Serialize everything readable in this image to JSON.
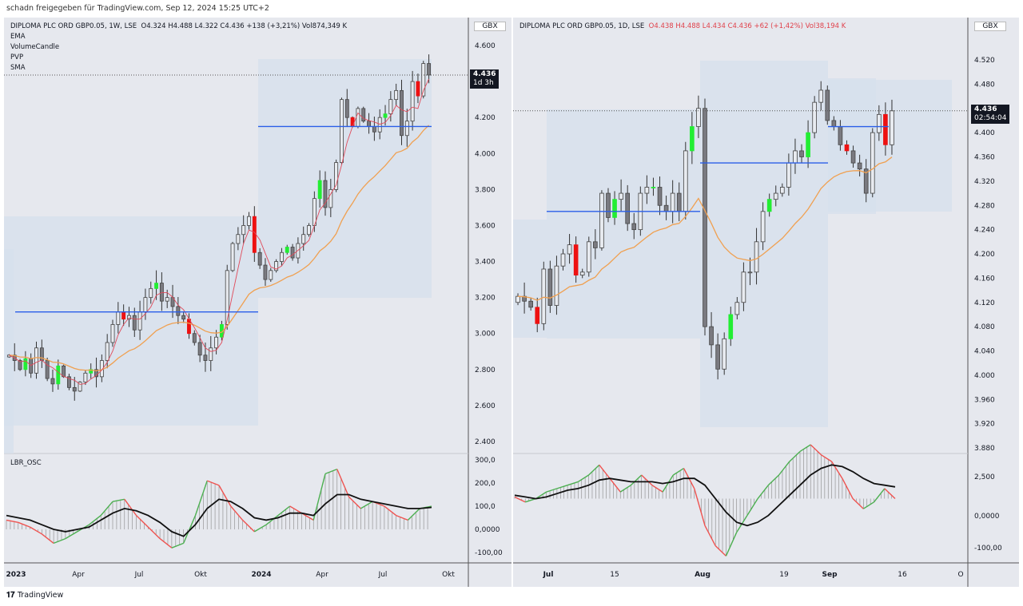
{
  "share_text": "schadn freigegeben für TradingView.com, Sep 12, 2024 15:25 UTC+2",
  "footer": "TradingView",
  "left": {
    "title": "DIPLOMA PLC ORD GBP0.05, 1W, LSE",
    "ohlc": "O4.324  H4.488  L4.322  C4.436  +138 (+3,21%)  Vol874,349 K",
    "indicators": [
      "EMA",
      "VolumeCandle",
      "PVP",
      "SMA"
    ],
    "currency": "GBX",
    "price_tag": "4.436",
    "countdown": "1d 3h",
    "osc_label": "LBR_OSC"
  },
  "right": {
    "title": "DIPLOMA PLC ORD GBP0.05, 1D, LSE",
    "ohlc": "O4.438  H4.488  L4.434  C4.436  +62 (+1,42%)  Vol38,194 K",
    "currency": "GBX",
    "price_tag": "4.436",
    "countdown": "02:54:04"
  },
  "chart_data": [
    {
      "type": "candlestick",
      "name": "weekly",
      "ylim": [
        2.4,
        4.6
      ],
      "yticks": [
        "4.600",
        "4.400",
        "4.200",
        "4.000",
        "3.800",
        "3.600",
        "3.400",
        "3.200",
        "3.000",
        "2.800",
        "2.600",
        "2.400"
      ],
      "xticks": [
        "2023",
        "Apr",
        "Jul",
        "Okt",
        "2024",
        "Apr",
        "Jul",
        "Okt"
      ],
      "close": [
        2.88,
        2.85,
        2.8,
        2.86,
        2.78,
        2.92,
        2.85,
        2.75,
        2.72,
        2.82,
        2.76,
        2.7,
        2.68,
        2.73,
        2.78,
        2.8,
        2.76,
        2.85,
        2.95,
        3.05,
        3.12,
        3.08,
        3.1,
        3.02,
        3.12,
        3.2,
        3.25,
        3.28,
        3.18,
        3.2,
        3.15,
        3.1,
        3.08,
        3.0,
        2.95,
        2.88,
        2.85,
        2.92,
        2.98,
        3.05,
        3.35,
        3.5,
        3.55,
        3.6,
        3.65,
        3.45,
        3.38,
        3.3,
        3.35,
        3.4,
        3.45,
        3.48,
        3.42,
        3.5,
        3.55,
        3.6,
        3.75,
        3.85,
        3.7,
        3.8,
        3.95,
        4.3,
        4.2,
        4.15,
        4.25,
        4.18,
        4.15,
        4.12,
        4.2,
        4.22,
        4.3,
        4.35,
        4.1,
        4.18,
        4.4,
        4.32,
        4.5,
        4.436
      ],
      "poc": [
        3.12,
        4.15
      ],
      "osc_ticks": [
        "300,0",
        "200,0",
        "100,0",
        "0,0000",
        "-100,00"
      ],
      "osc_fast": [
        40,
        30,
        10,
        -20,
        -60,
        -40,
        -10,
        20,
        60,
        120,
        130,
        60,
        10,
        -40,
        -80,
        -60,
        60,
        210,
        190,
        100,
        40,
        -10,
        20,
        60,
        100,
        70,
        40,
        240,
        260,
        140,
        90,
        120,
        100,
        60,
        40,
        90,
        100
      ],
      "osc_slow": [
        60,
        50,
        40,
        20,
        0,
        -10,
        0,
        10,
        40,
        70,
        90,
        80,
        60,
        30,
        -10,
        -30,
        20,
        90,
        130,
        120,
        90,
        50,
        40,
        50,
        70,
        70,
        60,
        110,
        150,
        150,
        130,
        120,
        110,
        100,
        90,
        90,
        95
      ]
    },
    {
      "type": "candlestick",
      "name": "daily",
      "ylim": [
        3.88,
        4.52
      ],
      "yticks": [
        "4.520",
        "4.480",
        "4.440",
        "4.400",
        "4.360",
        "4.320",
        "4.280",
        "4.240",
        "4.200",
        "4.160",
        "4.120",
        "4.080",
        "4.040",
        "4.000",
        "3.960",
        "3.920",
        "3.880"
      ],
      "xticks": [
        "Jul",
        "15",
        "Aug",
        "19",
        "Sep",
        "16",
        "O"
      ],
      "close": [
        4.13,
        4.122,
        4.112,
        4.085,
        4.175,
        4.115,
        4.18,
        4.2,
        4.215,
        4.165,
        4.17,
        4.22,
        4.21,
        4.3,
        4.26,
        4.29,
        4.3,
        4.25,
        4.24,
        4.3,
        4.31,
        4.31,
        4.28,
        4.27,
        4.3,
        4.27,
        4.37,
        4.41,
        4.44,
        4.08,
        4.05,
        4.01,
        4.06,
        4.1,
        4.12,
        4.17,
        4.17,
        4.22,
        4.27,
        4.29,
        4.3,
        4.31,
        4.35,
        4.37,
        4.36,
        4.4,
        4.45,
        4.47,
        4.42,
        4.41,
        4.38,
        4.37,
        4.35,
        4.34,
        4.3,
        4.4,
        4.43,
        4.38,
        4.436
      ],
      "poc": [
        4.27,
        4.35,
        4.41
      ],
      "osc_ticks": [
        "2,500",
        "0,0000",
        "-100,00"
      ],
      "osc_fast": [
        5,
        -10,
        0,
        20,
        30,
        40,
        50,
        70,
        100,
        60,
        20,
        40,
        70,
        40,
        20,
        70,
        90,
        30,
        -80,
        -140,
        -170,
        -100,
        -50,
        0,
        40,
        70,
        110,
        140,
        160,
        130,
        110,
        60,
        0,
        -30,
        -10,
        30,
        0
      ],
      "osc_slow": [
        10,
        5,
        0,
        5,
        15,
        25,
        30,
        40,
        55,
        60,
        55,
        50,
        50,
        50,
        45,
        50,
        60,
        60,
        40,
        0,
        -40,
        -70,
        -80,
        -70,
        -50,
        -20,
        10,
        40,
        70,
        90,
        100,
        95,
        80,
        60,
        45,
        40,
        35
      ]
    }
  ]
}
